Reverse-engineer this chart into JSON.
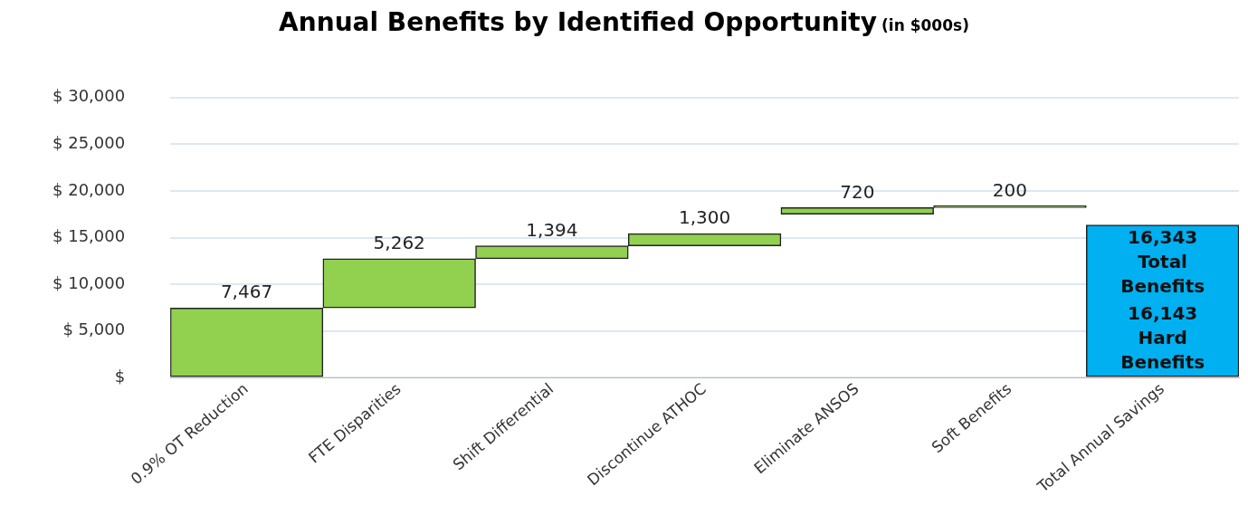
{
  "chart_data": {
    "type": "bar",
    "title": "Annual Benefits by Identified Opportunity",
    "subtitle": "(in $000s)",
    "categories": [
      "0.9% OT Reduction",
      "FTE Disparities",
      "Shift Differential",
      "Discontinue ATHOC",
      "Eliminate ANSOS",
      "Soft Benefits",
      "Total Annual Savings"
    ],
    "values": [
      7467,
      5262,
      1394,
      1300,
      720,
      200,
      16343
    ],
    "base": [
      0,
      7467,
      12729,
      14123,
      17500,
      18200,
      0
    ],
    "colors": [
      "#92d050",
      "#92d050",
      "#92d050",
      "#92d050",
      "#92d050",
      "#92d050",
      "#00b0f0"
    ],
    "value_labels": [
      "7,467",
      "5,262",
      "1,394",
      "1,300",
      "720",
      "200",
      null
    ],
    "annotations": [
      "16,343 Total Benefits",
      "16,143 Hard Benefits"
    ],
    "ylim": [
      0,
      30000
    ],
    "yticks": [
      {
        "value": 0,
        "label": "$"
      },
      {
        "value": 5000,
        "label": "$ 5,000"
      },
      {
        "value": 10000,
        "label": "$ 10,000"
      },
      {
        "value": 15000,
        "label": "$ 15,000"
      },
      {
        "value": 20000,
        "label": "$ 20,000"
      },
      {
        "value": 25000,
        "label": "$ 25,000"
      },
      {
        "value": 30000,
        "label": "$ 30,000"
      }
    ],
    "grid": "y",
    "legend": false
  }
}
